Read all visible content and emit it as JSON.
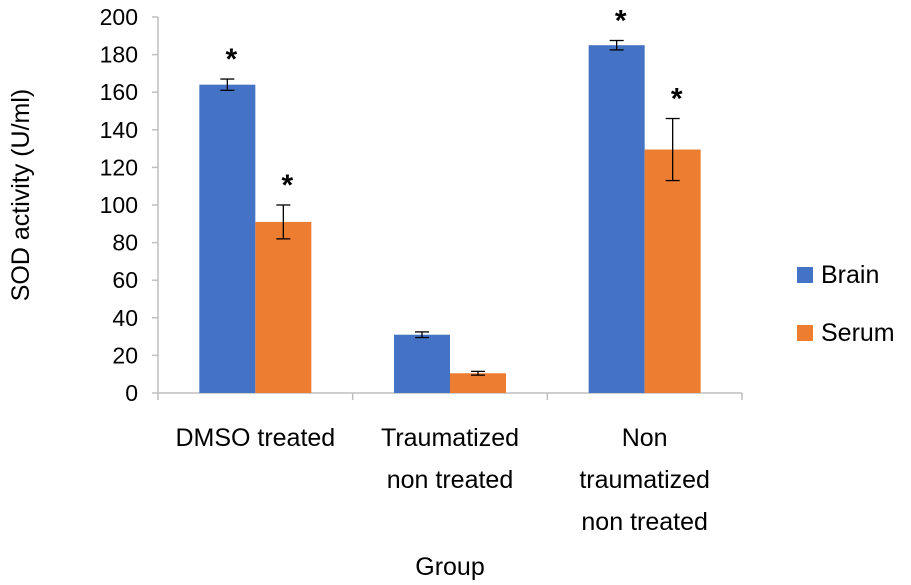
{
  "chart_data": {
    "type": "bar",
    "title": "",
    "xlabel": "Group",
    "ylabel": "SOD activity (U/ml)",
    "ylim": [
      0,
      200
    ],
    "ytick_step": 20,
    "yticks": [
      "0",
      "20",
      "40",
      "60",
      "80",
      "100",
      "120",
      "140",
      "160",
      "180",
      "200"
    ],
    "grid": false,
    "legend_position": "right",
    "categories": [
      [
        "DMSO treated"
      ],
      [
        "Traumatized",
        "non treated"
      ],
      [
        "Non",
        "traumatized",
        "non treated"
      ]
    ],
    "series": [
      {
        "name": "Brain",
        "color": "#4472C4",
        "values": [
          164,
          31,
          185
        ],
        "errors": [
          3,
          1.5,
          2.5
        ],
        "significance": [
          "*",
          "",
          "*"
        ]
      },
      {
        "name": "Serum",
        "color": "#ED7D31",
        "values": [
          91,
          10.5,
          129.5
        ],
        "errors": [
          9,
          1,
          16.5
        ],
        "significance": [
          "*",
          "",
          "*"
        ]
      }
    ]
  }
}
